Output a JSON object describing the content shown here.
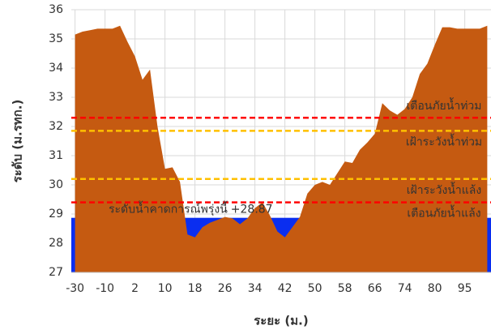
{
  "chart_data": {
    "type": "area",
    "y_label": "ระดับ (ม.รทก.)",
    "x_label": "ระยะ (ม.)",
    "categories": [
      "-30",
      null,
      null,
      null,
      "-10",
      null,
      null,
      null,
      "2",
      null,
      null,
      null,
      "10",
      null,
      null,
      null,
      "18",
      null,
      null,
      null,
      "26",
      null,
      null,
      null,
      "34",
      null,
      null,
      null,
      "42",
      null,
      null,
      null,
      "50",
      null,
      null,
      null,
      "58",
      null,
      null,
      null,
      "66",
      null,
      null,
      null,
      "74",
      null,
      null,
      null,
      "80",
      null,
      null,
      null,
      "95",
      null,
      null,
      null
    ],
    "values": [
      35.15,
      35.25,
      35.3,
      35.35,
      35.35,
      35.35,
      35.45,
      34.9,
      34.4,
      33.6,
      33.95,
      32.0,
      30.55,
      30.6,
      30.1,
      28.3,
      28.2,
      28.55,
      28.7,
      28.8,
      28.9,
      28.85,
      28.65,
      28.85,
      29.2,
      29.4,
      28.95,
      28.4,
      28.2,
      28.55,
      28.9,
      29.7,
      30.0,
      30.1,
      30.0,
      30.4,
      30.8,
      30.75,
      31.2,
      31.45,
      31.75,
      32.8,
      32.55,
      32.4,
      32.6,
      33.0,
      33.8,
      34.15,
      34.8,
      35.4,
      35.4,
      35.35,
      35.35,
      35.35,
      35.35,
      35.45
    ],
    "color": "#c55a11",
    "water": {
      "label": "ระดับน้ำคาดการณ์พรุ่งนี้",
      "level": 28.87,
      "level_label": "+28.87",
      "color": "#0a2ef0"
    },
    "thresholds": [
      {
        "name": "เตือนภัยน้ำท่วม",
        "value": 32.3,
        "color": "#ff0000"
      },
      {
        "name": "เฝ้าระวังน้ำท่วม",
        "value": 31.85,
        "color": "#ffc000"
      },
      {
        "name": "เฝ้าระวังน้ำแล้ง",
        "value": 30.2,
        "color": "#ffc000"
      },
      {
        "name": "เตือนภัยน้ำแล้ง",
        "value": 29.4,
        "color": "#ff0000"
      }
    ],
    "ylim": [
      27,
      36
    ],
    "yticks": [
      27,
      28,
      29,
      30,
      31,
      32,
      33,
      34,
      35,
      36
    ],
    "grid": true
  }
}
